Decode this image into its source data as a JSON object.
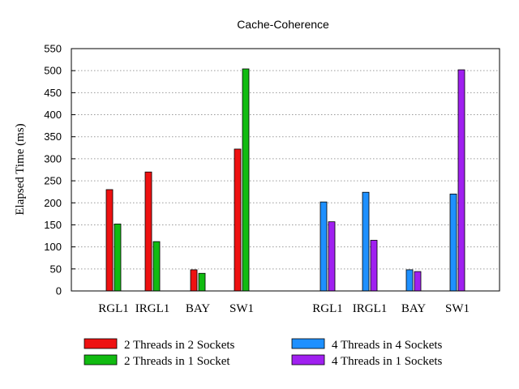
{
  "chart_data": {
    "type": "bar",
    "title": "Cache-Coherence",
    "ylabel": "Elapsed Time (ms)",
    "xlabel": "",
    "ylim": [
      0,
      550
    ],
    "yticks": [
      0,
      50,
      100,
      150,
      200,
      250,
      300,
      350,
      400,
      450,
      500,
      550
    ],
    "grid": true,
    "legend_position": "bottom",
    "colors": {
      "2 Threads in 2 Sockets": "#ee1111",
      "2 Threads in 1 Socket": "#11bb11",
      "4 Threads in 4 Sockets": "#1e90ff",
      "4 Threads in 1 Sockets": "#a020f0"
    },
    "groups": [
      {
        "categories": [
          "RGL1",
          "IRGL1",
          "BAY",
          "SW1"
        ],
        "series": [
          {
            "name": "2 Threads in 2 Sockets",
            "values": [
              230,
              270,
              48,
              322
            ]
          },
          {
            "name": "2 Threads in 1 Socket",
            "values": [
              152,
              112,
              40,
              504
            ]
          }
        ]
      },
      {
        "categories": [
          "RGL1",
          "IRGL1",
          "BAY",
          "SW1"
        ],
        "series": [
          {
            "name": "4 Threads in 4 Sockets",
            "values": [
              202,
              224,
              48,
              220
            ]
          },
          {
            "name": "4 Threads in 1 Sockets",
            "values": [
              157,
              115,
              44,
              502
            ]
          }
        ]
      }
    ],
    "legend": [
      "2 Threads in 2 Sockets",
      "2 Threads in 1 Socket",
      "4 Threads in 4 Sockets",
      "4 Threads in 1 Sockets"
    ]
  }
}
